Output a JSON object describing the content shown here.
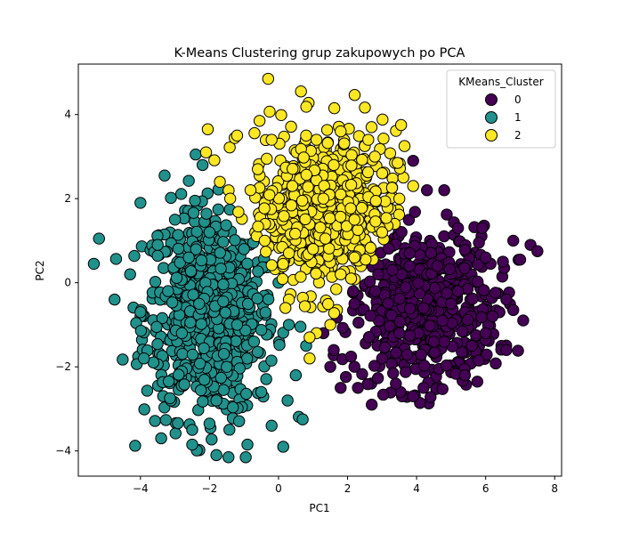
{
  "chart_data": {
    "type": "scatter",
    "title": "K-Means Clustering grup zakupowych po PCA",
    "xlabel": "PC1",
    "ylabel": "PC2",
    "xlim": [
      -5.8,
      8.2
    ],
    "ylim": [
      -4.6,
      5.2
    ],
    "xticks": [
      -4,
      -2,
      0,
      2,
      4,
      6,
      8
    ],
    "yticks": [
      -4,
      -2,
      0,
      2,
      4
    ],
    "grid": false,
    "legend": {
      "title": "KMeans_Cluster",
      "placement": "top-right",
      "entries": [
        "0",
        "1",
        "2"
      ]
    },
    "colors": {
      "0": "#440154",
      "1": "#21918c",
      "2": "#fde725"
    },
    "series": [
      {
        "name": "0",
        "approx_count": 500,
        "center": [
          4.2,
          -0.6
        ],
        "x_range": [
          1.3,
          7.5
        ],
        "y_range": [
          -2.9,
          2.9
        ],
        "sample_points": [
          [
            3.9,
            2.9
          ],
          [
            4.8,
            2.2
          ],
          [
            4.3,
            2.2
          ],
          [
            5.2,
            1.3
          ],
          [
            5.9,
            1.3
          ],
          [
            6.8,
            1.0
          ],
          [
            7.3,
            0.9
          ],
          [
            7.5,
            0.75
          ],
          [
            7.0,
            0.55
          ],
          [
            6.5,
            0.5
          ],
          [
            6.0,
            0.6
          ],
          [
            6.6,
            -0.4
          ],
          [
            6.4,
            -0.7
          ],
          [
            6.8,
            -0.65
          ],
          [
            6.2,
            -0.8
          ],
          [
            6.0,
            -1.2
          ],
          [
            5.6,
            -1.5
          ],
          [
            6.6,
            -1.6
          ],
          [
            5.8,
            -1.85
          ],
          [
            5.4,
            -2.2
          ],
          [
            4.2,
            -2.5
          ],
          [
            3.9,
            -2.7
          ],
          [
            3.4,
            -2.4
          ],
          [
            2.7,
            -2.9
          ],
          [
            2.3,
            -2.5
          ],
          [
            1.8,
            -2.5
          ],
          [
            1.5,
            -2.0
          ],
          [
            1.3,
            -1.2
          ],
          [
            1.6,
            -1.6
          ],
          [
            2.2,
            -0.5
          ],
          [
            2.8,
            -0.2
          ],
          [
            3.3,
            0.3
          ],
          [
            3.8,
            0.7
          ],
          [
            4.6,
            0.4
          ],
          [
            5.0,
            -0.5
          ],
          [
            4.2,
            -0.6
          ],
          [
            3.5,
            -1.2
          ],
          [
            4.5,
            -1.4
          ],
          [
            5.2,
            -0.2
          ],
          [
            3.0,
            -1.8
          ]
        ]
      },
      {
        "name": "1",
        "approx_count": 650,
        "center": [
          -2.0,
          -0.7
        ],
        "x_range": [
          -5.3,
          1.1
        ],
        "y_range": [
          -4.2,
          3.1
        ],
        "sample_points": [
          [
            -5.2,
            1.05
          ],
          [
            -5.35,
            0.45
          ],
          [
            -4.3,
            0.2
          ],
          [
            -4.0,
            -0.7
          ],
          [
            -3.9,
            -1.8
          ],
          [
            -3.4,
            -3.7
          ],
          [
            -2.5,
            -3.85
          ],
          [
            -2.5,
            -3.5
          ],
          [
            -2.0,
            -3.35
          ],
          [
            -1.8,
            -4.1
          ],
          [
            -1.45,
            -4.15
          ],
          [
            -0.95,
            -4.15
          ],
          [
            -0.9,
            -3.85
          ],
          [
            -0.2,
            -3.4
          ],
          [
            0.7,
            -3.25
          ],
          [
            -2.4,
            3.05
          ],
          [
            -2.2,
            2.8
          ],
          [
            -3.3,
            2.55
          ],
          [
            -4.0,
            1.9
          ],
          [
            -3.0,
            1.5
          ],
          [
            -2.0,
            1.2
          ],
          [
            -1.0,
            0.8
          ],
          [
            0.0,
            0.0
          ],
          [
            0.3,
            -1.0
          ],
          [
            0.8,
            -1.5
          ],
          [
            0.5,
            -2.2
          ],
          [
            -0.5,
            -2.6
          ],
          [
            -1.5,
            -2.0
          ],
          [
            -2.8,
            -1.2
          ],
          [
            -3.2,
            -0.2
          ],
          [
            -2.3,
            -0.5
          ],
          [
            -1.2,
            -1.0
          ],
          [
            -2.6,
            0.6
          ],
          [
            -1.8,
            -2.8
          ],
          [
            -3.5,
            0.9
          ]
        ]
      },
      {
        "name": "2",
        "approx_count": 600,
        "center": [
          1.3,
          1.7
        ],
        "x_range": [
          -2.2,
          3.9
        ],
        "y_range": [
          -1.8,
          4.9
        ],
        "sample_points": [
          [
            -0.3,
            4.85
          ],
          [
            0.65,
            4.55
          ],
          [
            -0.55,
            3.85
          ],
          [
            -2.05,
            3.65
          ],
          [
            -2.1,
            3.1
          ],
          [
            -1.2,
            3.5
          ],
          [
            -0.2,
            3.4
          ],
          [
            0.8,
            3.5
          ],
          [
            1.1,
            3.4
          ],
          [
            1.8,
            3.6
          ],
          [
            2.5,
            3.25
          ],
          [
            2.6,
            3.4
          ],
          [
            3.55,
            3.75
          ],
          [
            3.65,
            3.25
          ],
          [
            3.45,
            2.85
          ],
          [
            3.9,
            2.3
          ],
          [
            3.5,
            2.0
          ],
          [
            3.0,
            1.2
          ],
          [
            2.2,
            0.6
          ],
          [
            1.8,
            0.2
          ],
          [
            1.5,
            -1.0
          ],
          [
            1.1,
            -1.2
          ],
          [
            0.9,
            -1.3
          ],
          [
            0.9,
            -1.8
          ],
          [
            0.3,
            -0.4
          ],
          [
            0.2,
            -0.6
          ],
          [
            -0.4,
            1.0
          ],
          [
            -1.4,
            2.0
          ],
          [
            -1.7,
            2.4
          ],
          [
            -0.6,
            2.7
          ],
          [
            0.4,
            2.3
          ],
          [
            1.3,
            2.0
          ],
          [
            2.2,
            1.5
          ],
          [
            1.0,
            0.8
          ],
          [
            1.6,
            2.8
          ]
        ]
      }
    ]
  }
}
